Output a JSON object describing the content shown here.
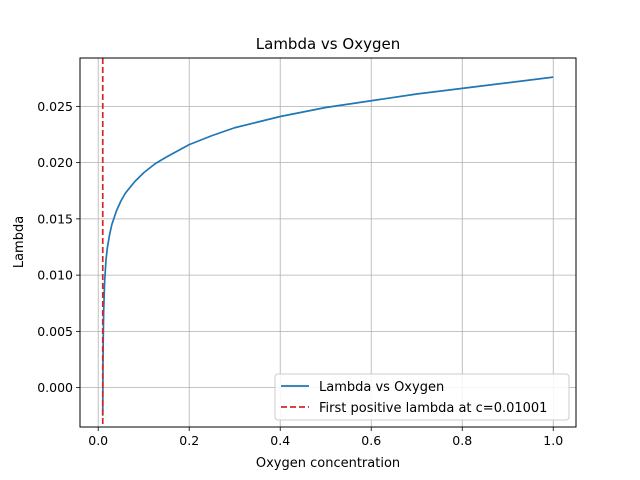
{
  "chart_data": {
    "type": "line",
    "title": "Lambda vs Oxygen",
    "xlabel": "Oxygen concentration",
    "ylabel": "Lambda",
    "xlim": [
      -0.04,
      1.05
    ],
    "ylim": [
      -0.0035,
      0.0293
    ],
    "grid": true,
    "legend_position": "lower-right",
    "x_ticks": [
      0.0,
      0.2,
      0.4,
      0.6,
      0.8,
      1.0
    ],
    "x_tick_labels": [
      "0.0",
      "0.2",
      "0.4",
      "0.6",
      "0.8",
      "1.0"
    ],
    "y_ticks": [
      0.0,
      0.005,
      0.01,
      0.015,
      0.02,
      0.025
    ],
    "y_tick_labels": [
      "0.000",
      "0.005",
      "0.010",
      "0.015",
      "0.020",
      "0.025"
    ],
    "series": [
      {
        "name": "Lambda vs Oxygen",
        "color": "#1f77b4",
        "style": "solid",
        "x": [
          0.01,
          0.0105,
          0.011,
          0.012,
          0.014,
          0.017,
          0.02,
          0.025,
          0.03,
          0.04,
          0.05,
          0.06,
          0.08,
          0.1,
          0.125,
          0.15,
          0.2,
          0.25,
          0.3,
          0.35,
          0.4,
          0.5,
          0.6,
          0.7,
          0.8,
          0.9,
          1.0
        ],
        "y": [
          -0.0025,
          0.002,
          0.0042,
          0.0067,
          0.0093,
          0.0113,
          0.0124,
          0.0136,
          0.0145,
          0.0157,
          0.0166,
          0.0173,
          0.0183,
          0.0191,
          0.0199,
          0.0205,
          0.0216,
          0.0224,
          0.0231,
          0.0236,
          0.0241,
          0.0249,
          0.0255,
          0.0261,
          0.0266,
          0.0271,
          0.0276
        ]
      }
    ],
    "reference_lines": [
      {
        "name": "First positive lambda at c=0.01001",
        "orientation": "vertical",
        "x": 0.01001,
        "color": "#d62728",
        "style": "dashed"
      }
    ]
  }
}
